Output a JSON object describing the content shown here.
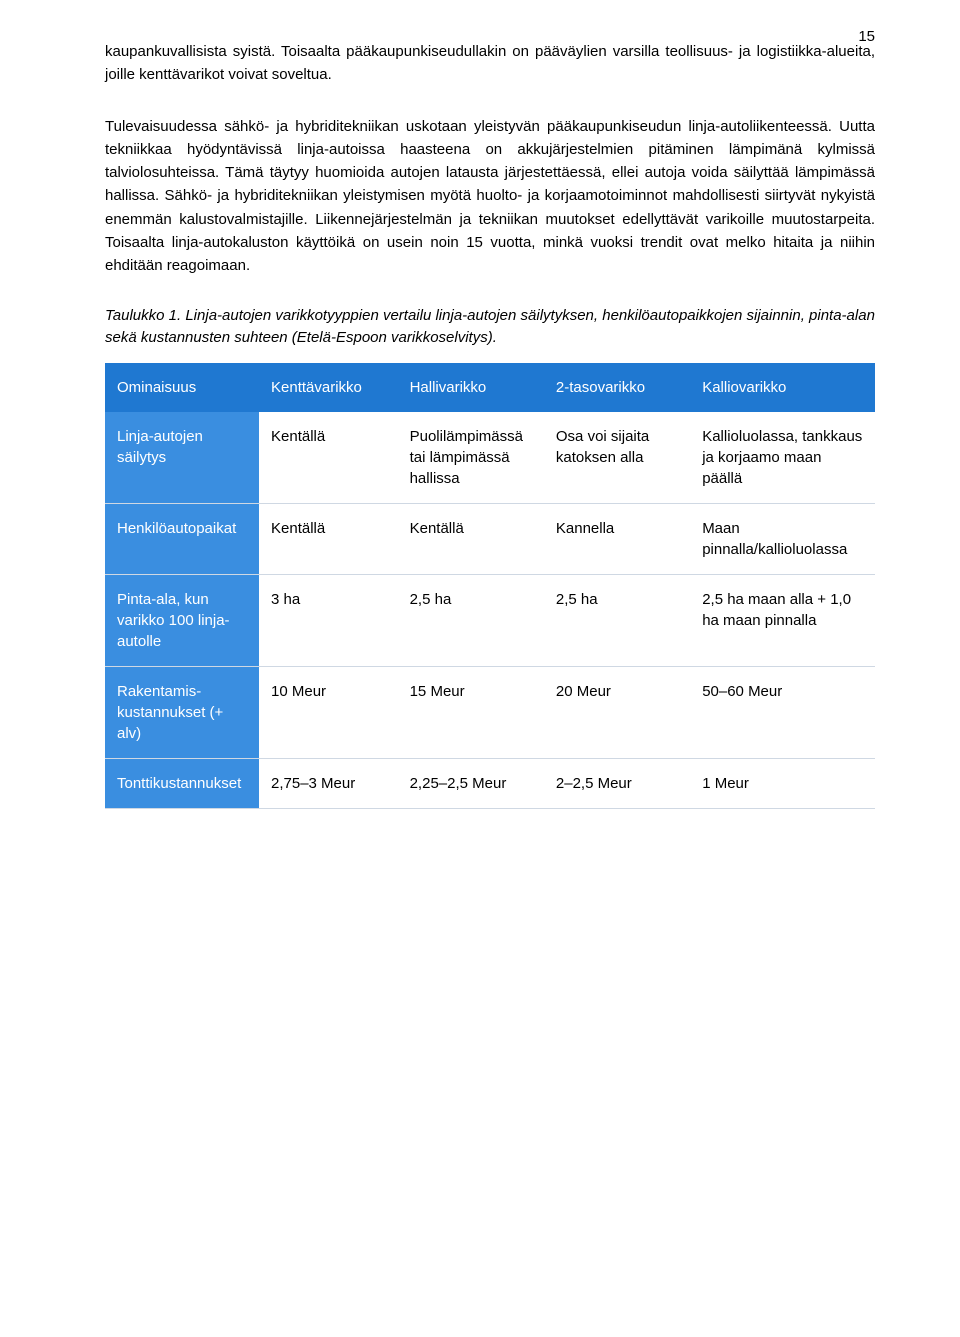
{
  "page_number": "15",
  "paragraphs": {
    "p1": "kaupankuvallisista syistä. Toisaalta pääkaupunkiseudullakin on pääväylien varsilla teollisuus- ja logistiikka-alueita, joille kenttävarikot voivat soveltua.",
    "p2": "Tulevaisuudessa sähkö- ja hybriditekniikan uskotaan yleistyvän pääkaupunkiseudun linja-autoliikenteessä. Uutta tekniikkaa hyödyntävissä linja-autoissa haasteena on akkujärjestelmien pitäminen lämpimänä kylmissä talviolosuhteissa. Tämä täytyy huomioida autojen latausta järjestettäessä, ellei autoja voida säilyttää lämpimässä hallissa. Sähkö- ja hybriditekniikan yleistymisen myötä huolto- ja korjaamotoiminnot mahdollisesti siirtyvät nykyistä enemmän kalustovalmistajille. Liikennejärjestelmän ja tekniikan muutokset edellyttävät varikoille muutostarpeita. Toisaalta linja-autokaluston käyttöikä on usein noin 15 vuotta, minkä vuoksi trendit ovat melko hitaita ja niihin ehditään reagoimaan."
  },
  "table_caption": {
    "label": "Taulukko 1.",
    "text": " Linja-autojen varikkotyyppien vertailu linja-autojen säilytyksen, henkilöautopaikkojen sijainnin, pinta-alan sekä kustannusten suhteen (Etelä-Espoon varikkoselvitys)."
  },
  "table": {
    "header_bg": "#1f78d1",
    "rowhead_bg": "#3a8ee0",
    "border_color": "#cfd8e3",
    "columns": [
      "Ominaisuus",
      "Kenttävarikko",
      "Hallivarikko",
      "2-tasovarikko",
      "Kalliovarikko"
    ],
    "rows": [
      {
        "head": "Linja-autojen säilytys",
        "cells": [
          "Kentällä",
          "Puolilämpimässä tai lämpimässä hallissa",
          "Osa voi sijaita katoksen alla",
          "Kallioluolassa, tankkaus ja korjaamo maan päällä"
        ]
      },
      {
        "head": "Henkilöauto­paikat",
        "cells": [
          "Kentällä",
          "Kentällä",
          "Kannella",
          "Maan pinnalla/kallioluolassa"
        ]
      },
      {
        "head": "Pinta-ala, kun varikko 100 linja-autolle",
        "cells": [
          "3 ha",
          "2,5 ha",
          "2,5 ha",
          "2,5 ha maan alla + 1,0 ha maan pinnalla"
        ]
      },
      {
        "head": "Rakentamis­kustannukset (+ alv)",
        "cells": [
          "10 Meur",
          "15 Meur",
          "20 Meur",
          "50–60 Meur"
        ]
      },
      {
        "head": "Tonttikus­tannukset",
        "cells": [
          "2,75–3 Meur",
          "2,25–2,5 Meur",
          "2–2,5 Meur",
          "1 Meur"
        ]
      }
    ]
  }
}
